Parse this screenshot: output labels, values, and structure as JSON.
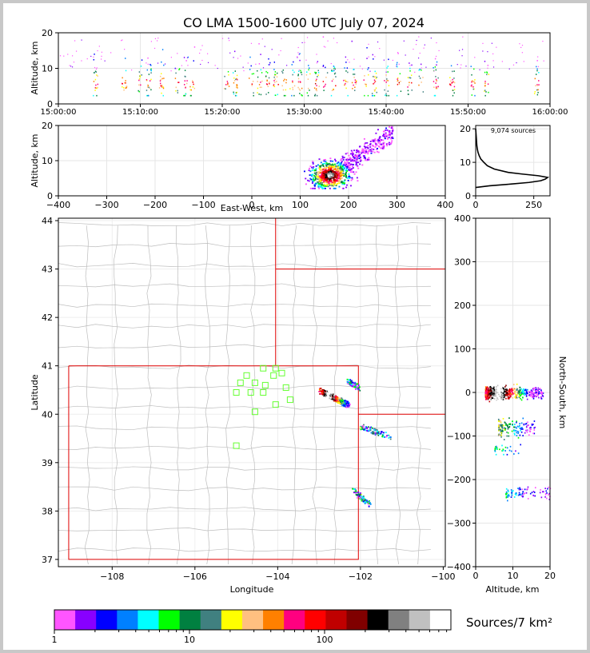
{
  "title": "CO LMA 1500-1600 UTC July 07, 2024",
  "chart_data": [
    {
      "id": "time_height",
      "type": "scatter",
      "ylabel": "Altitude, km",
      "ylim": [
        0,
        20
      ],
      "yticks": [
        "0",
        "10",
        "20"
      ],
      "xticks": [
        "15:00:00",
        "15:10:00",
        "15:20:00",
        "15:30:00",
        "15:40:00",
        "15:50:00",
        "16:00:00"
      ],
      "xlim_minutes": [
        0,
        60
      ],
      "active_minutes": [
        4.5,
        8,
        10,
        11,
        12.5,
        14.5,
        15.5,
        16.3,
        20.5,
        21.5,
        23.5,
        24.5,
        25.5,
        26.5,
        27.5,
        28.5,
        29.5,
        30.5,
        31.5,
        32.5,
        33.5,
        35,
        36,
        37.5,
        38.5,
        40,
        41.5,
        42.8,
        44.2,
        46,
        48,
        50.5,
        52.2,
        58.3
      ]
    },
    {
      "id": "ew_height",
      "type": "scatter",
      "xlabel": "East-West, km",
      "ylabel": "Altitude, km",
      "xlim": [
        -400,
        400
      ],
      "ylim": [
        0,
        20
      ],
      "xticks": [
        "−400",
        "−300",
        "−200",
        "−100",
        "0",
        "100",
        "200",
        "300",
        "400"
      ],
      "yticks": [
        "0",
        "10",
        "20"
      ],
      "cluster_center": {
        "x": 160,
        "z": 6
      },
      "cluster_extent": {
        "x": [
          130,
          290
        ],
        "z": [
          2,
          20
        ]
      }
    },
    {
      "id": "altitude_histogram",
      "type": "line",
      "annotation": "9,074 sources",
      "xlim": [
        0,
        320
      ],
      "ylim": [
        0,
        21
      ],
      "xticks": [
        "0",
        "250"
      ],
      "yticks": [
        "0",
        "10",
        "20"
      ],
      "profile_alt_km": [
        2.5,
        3,
        3.5,
        4,
        4.5,
        5,
        5.5,
        6,
        6.5,
        7,
        8,
        9,
        10,
        11,
        12,
        13,
        14,
        15,
        16,
        17,
        18,
        19,
        20
      ],
      "profile_count": [
        0,
        60,
        150,
        230,
        280,
        300,
        310,
        270,
        200,
        140,
        80,
        50,
        35,
        22,
        15,
        10,
        7,
        5,
        4,
        3,
        2,
        1,
        0
      ]
    },
    {
      "id": "plan_view",
      "type": "scatter",
      "xlabel": "Longitude",
      "ylabel": "Latitude",
      "xlim": [
        -109.3,
        -99.95
      ],
      "ylim": [
        36.85,
        44.05
      ],
      "xticks": [
        "−108",
        "−106",
        "−104",
        "−102",
        "−100"
      ],
      "yticks": [
        "37",
        "38",
        "39",
        "40",
        "41",
        "42",
        "43",
        "44"
      ],
      "stations": [
        [
          -104.35,
          40.95
        ],
        [
          -104.05,
          40.95
        ],
        [
          -103.9,
          40.85
        ],
        [
          -104.1,
          40.8
        ],
        [
          -104.75,
          40.8
        ],
        [
          -104.9,
          40.65
        ],
        [
          -104.55,
          40.65
        ],
        [
          -104.3,
          40.6
        ],
        [
          -103.8,
          40.55
        ],
        [
          -105.0,
          40.45
        ],
        [
          -104.65,
          40.45
        ],
        [
          -104.35,
          40.45
        ],
        [
          -103.7,
          40.3
        ],
        [
          -104.05,
          40.2
        ],
        [
          -104.55,
          40.05
        ],
        [
          -105.0,
          39.35
        ]
      ],
      "clusters": [
        {
          "lon": [
            -103.0,
            -102.3
          ],
          "lat": [
            40.2,
            40.5
          ]
        },
        {
          "lon": [
            -102.3,
            -102.05
          ],
          "lat": [
            40.55,
            40.7
          ]
        },
        {
          "lon": [
            -102.0,
            -101.3
          ],
          "lat": [
            39.55,
            39.75
          ]
        },
        {
          "lon": [
            -102.2,
            -101.8
          ],
          "lat": [
            38.15,
            38.45
          ]
        }
      ]
    },
    {
      "id": "ns_height",
      "type": "scatter",
      "xlabel": "Altitude, km",
      "ylabel": "North-South, km",
      "xlim": [
        0,
        20
      ],
      "ylim": [
        -400,
        400
      ],
      "xticks": [
        "0",
        "10",
        "20"
      ],
      "yticks": [
        "400",
        "300",
        "200",
        "100",
        "0",
        "−100",
        "−200",
        "−300",
        "−400"
      ]
    }
  ],
  "colorbar": {
    "label": "Sources/7 km²",
    "ticks": [
      "1",
      "10",
      "100"
    ],
    "colors": [
      "#ff55ff",
      "#8800ff",
      "#0000ff",
      "#0080ff",
      "#00ffff",
      "#00ff00",
      "#008040",
      "#408080",
      "#ffff00",
      "#ffc080",
      "#ff8000",
      "#ff0080",
      "#ff0000",
      "#c00000",
      "#800000",
      "#000000",
      "#808080",
      "#c0c0c0",
      "#ffffff"
    ]
  }
}
